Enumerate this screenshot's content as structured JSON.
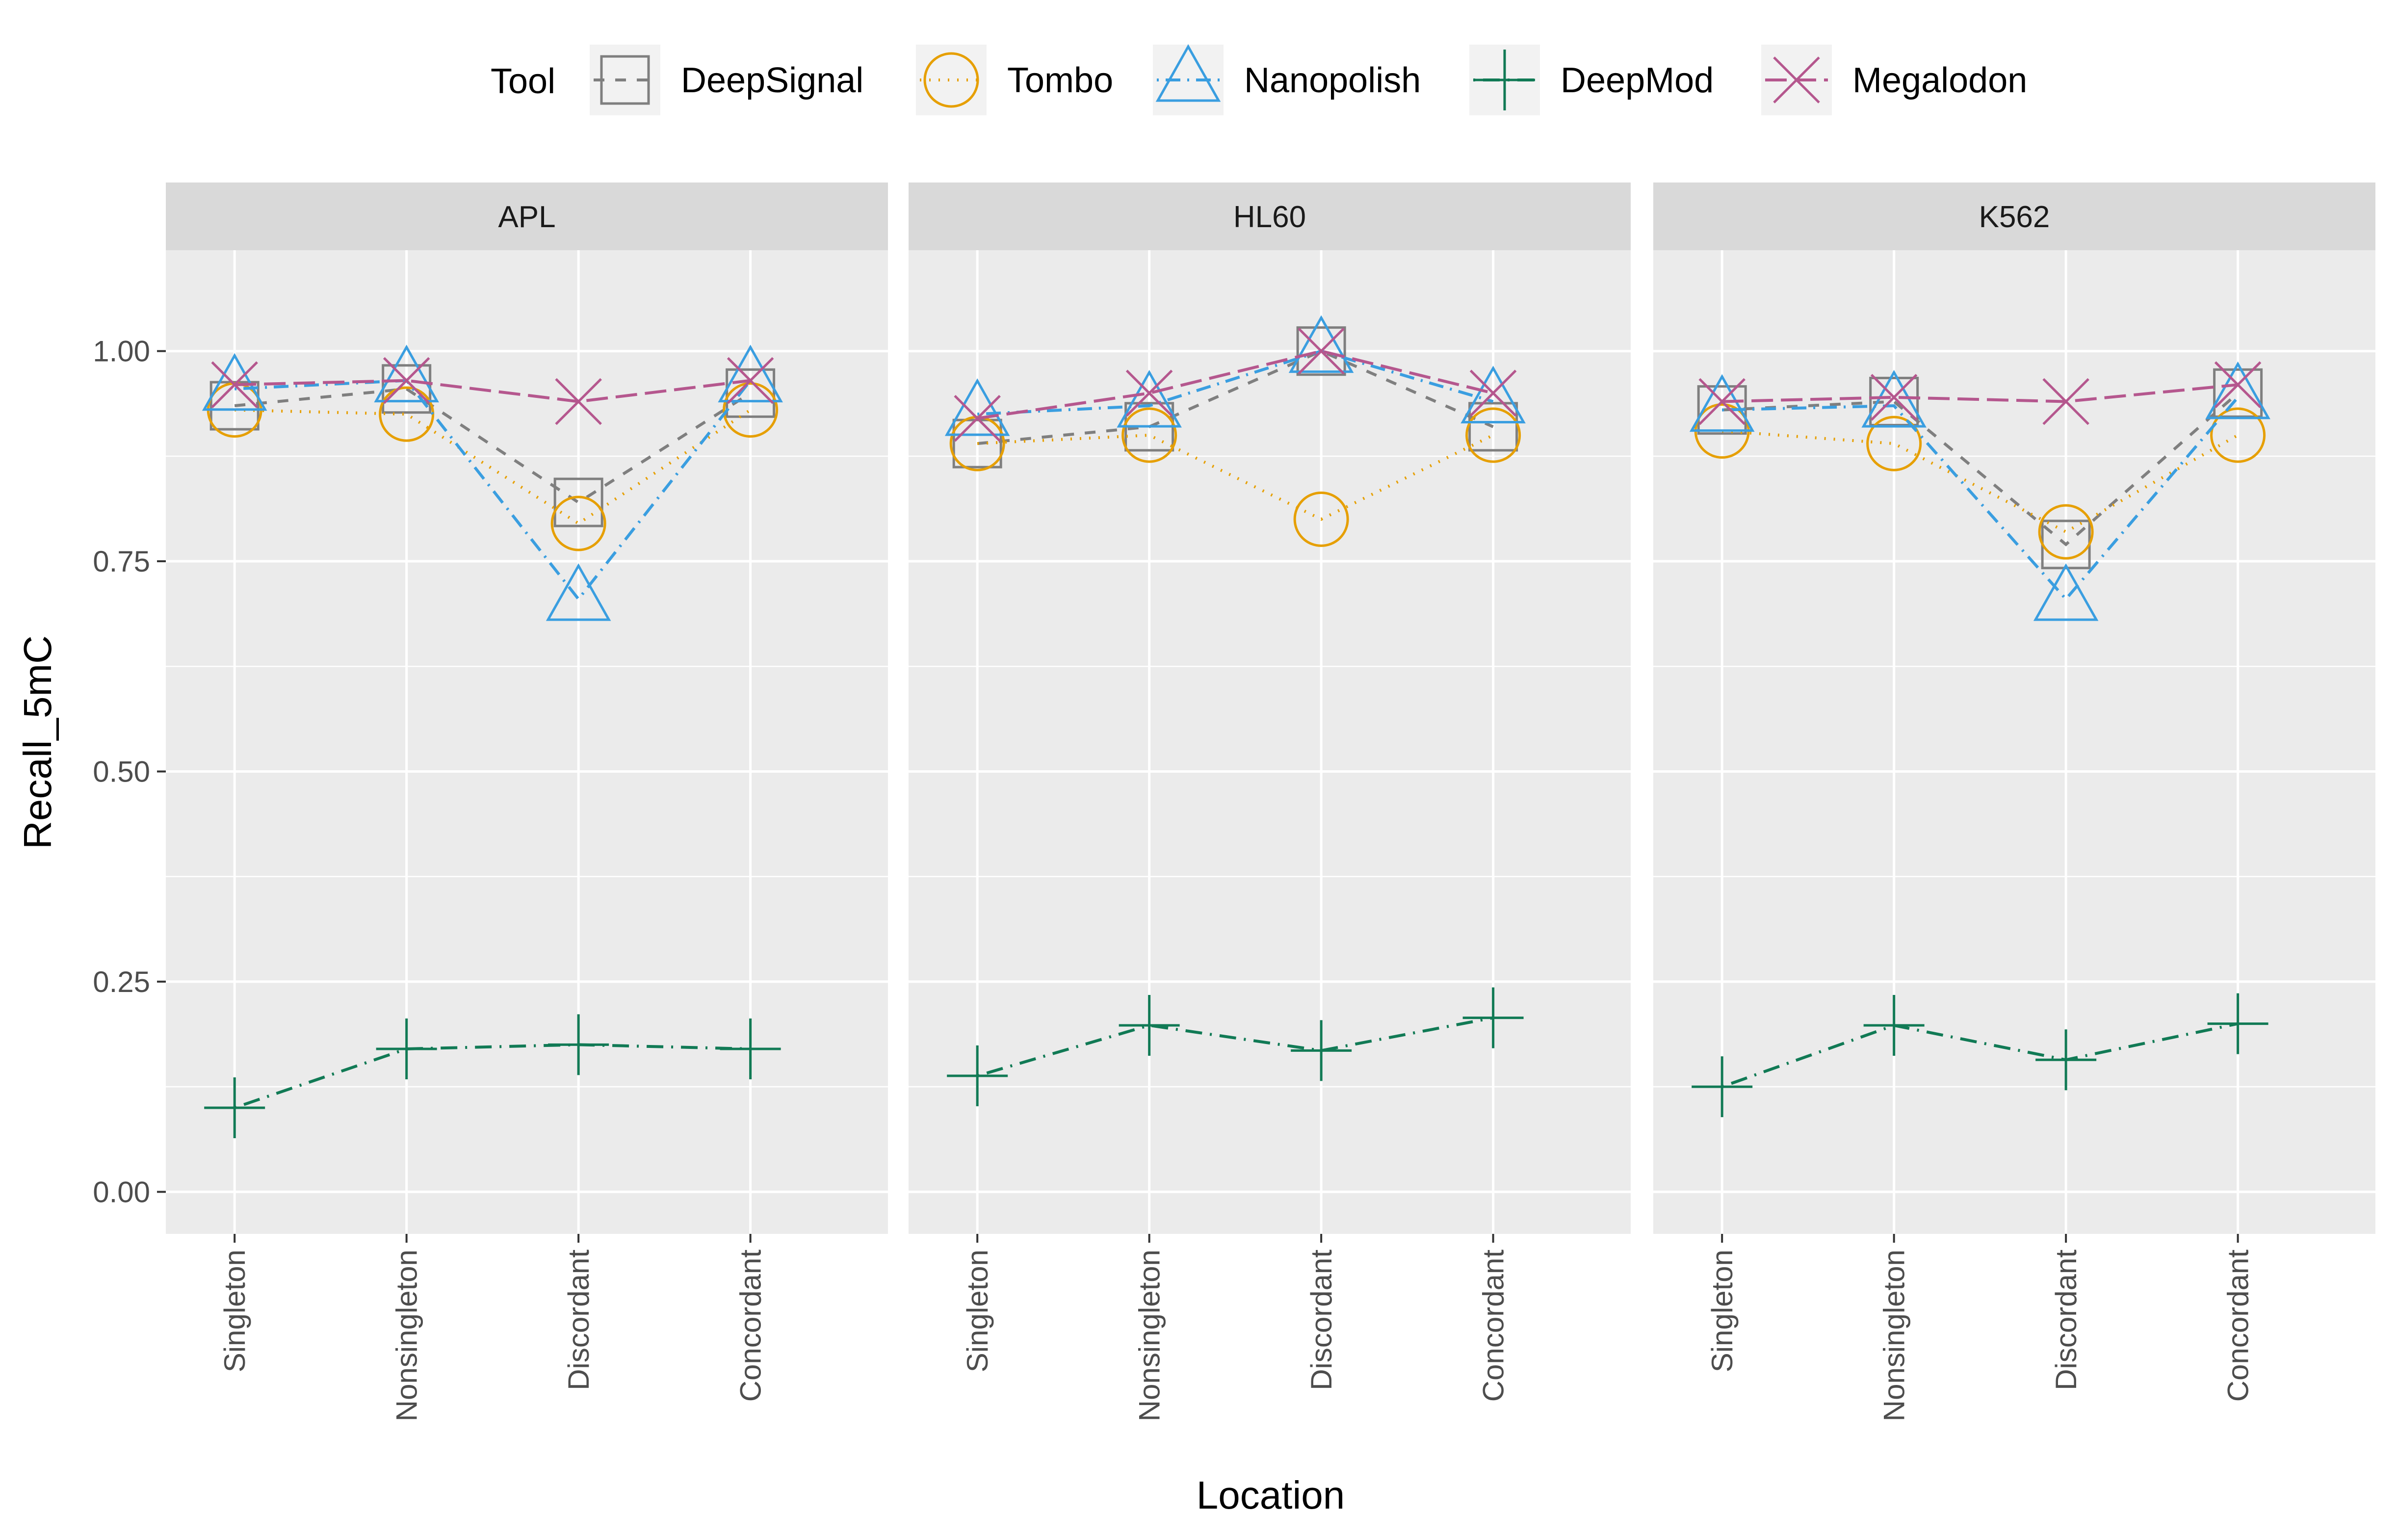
{
  "chart_data": {
    "type": "line",
    "title": "",
    "xlabel": "Location",
    "ylabel": "Recall_5mC",
    "ylim": [
      -0.05,
      1.12
    ],
    "y_ticks": [
      0.0,
      0.25,
      0.5,
      0.75,
      1.0
    ],
    "y_tick_labels": [
      "0.00",
      "0.25",
      "0.50",
      "0.75",
      "1.00"
    ],
    "grid": true,
    "legend": {
      "title": "Tool",
      "position": "top",
      "entries": [
        "DeepSignal",
        "Tombo",
        "Nanopolish",
        "DeepMod",
        "Megalodon"
      ]
    },
    "categories": [
      "Singleton",
      "Nonsingleton",
      "Discordant",
      "Concordant"
    ],
    "facets": [
      {
        "label": "APL",
        "series": [
          {
            "name": "DeepSignal",
            "values": [
              0.935,
              0.955,
              0.82,
              0.95
            ]
          },
          {
            "name": "Tombo",
            "values": [
              0.93,
              0.925,
              0.795,
              0.93
            ]
          },
          {
            "name": "Nanopolish",
            "values": [
              0.955,
              0.965,
              0.705,
              0.965
            ]
          },
          {
            "name": "DeepMod",
            "values": [
              0.1,
              0.17,
              0.175,
              0.17
            ]
          },
          {
            "name": "Megalodon",
            "values": [
              0.96,
              0.965,
              0.94,
              0.965
            ]
          }
        ]
      },
      {
        "label": "HL60",
        "series": [
          {
            "name": "DeepSignal",
            "values": [
              0.89,
              0.91,
              1.0,
              0.91
            ]
          },
          {
            "name": "Tombo",
            "values": [
              0.89,
              0.9,
              0.8,
              0.9
            ]
          },
          {
            "name": "Nanopolish",
            "values": [
              0.925,
              0.935,
              1.0,
              0.94
            ]
          },
          {
            "name": "DeepMod",
            "values": [
              0.138,
              0.198,
              0.168,
              0.207
            ]
          },
          {
            "name": "Megalodon",
            "values": [
              0.92,
              0.95,
              1.0,
              0.95
            ]
          }
        ]
      },
      {
        "label": "K562",
        "series": [
          {
            "name": "DeepSignal",
            "values": [
              0.93,
              0.94,
              0.77,
              0.95
            ]
          },
          {
            "name": "Tombo",
            "values": [
              0.905,
              0.89,
              0.785,
              0.9
            ]
          },
          {
            "name": "Nanopolish",
            "values": [
              0.93,
              0.935,
              0.705,
              0.945
            ]
          },
          {
            "name": "DeepMod",
            "values": [
              0.125,
              0.198,
              0.157,
              0.2
            ]
          },
          {
            "name": "Megalodon",
            "values": [
              0.94,
              0.945,
              0.94,
              0.96
            ]
          }
        ]
      }
    ]
  },
  "styles": {
    "DeepSignal": {
      "color": "#7f7f7f",
      "shape": "square",
      "dash": "dashed"
    },
    "Tombo": {
      "color": "#e69f00",
      "shape": "circle",
      "dash": "dotted"
    },
    "Nanopolish": {
      "color": "#3a9ee0",
      "shape": "triangle",
      "dash": "dotdash"
    },
    "DeepMod": {
      "color": "#117a55",
      "shape": "plus",
      "dash": "dotdashlong"
    },
    "Megalodon": {
      "color": "#b5578e",
      "shape": "cross",
      "dash": "longdash"
    }
  }
}
